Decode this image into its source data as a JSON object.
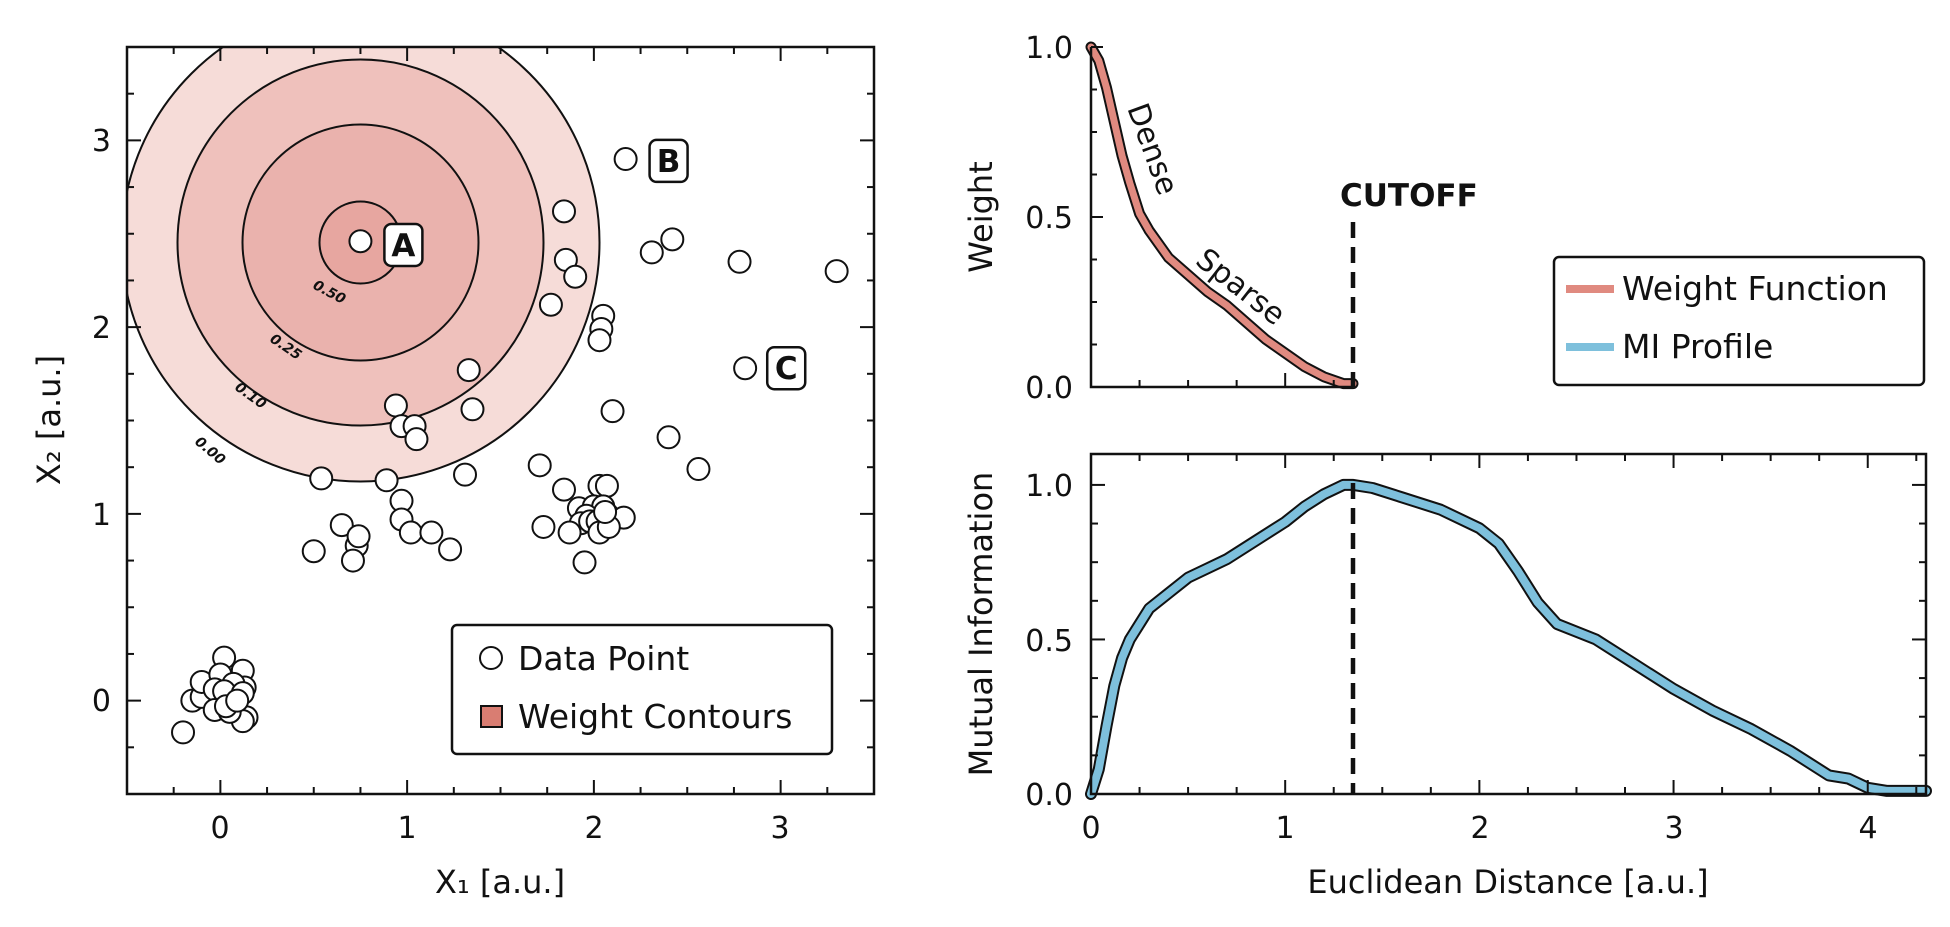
{
  "colors": {
    "weight": "#e08a80",
    "mi": "#7ec0dc",
    "contour_fills": [
      "#f6dcd8",
      "#efc1bc",
      "#eab2ad",
      "#e7a6a0"
    ],
    "legend_patch": "#d97d72"
  },
  "left_panel": {
    "xlabel": "X₁ [a.u.]",
    "ylabel": "X₂ [a.u.]",
    "xticks": [
      "0",
      "1",
      "2",
      "3"
    ],
    "yticks": [
      "0",
      "1",
      "2",
      "3"
    ],
    "legend": [
      "Data Point",
      "Weight Contours"
    ],
    "contour_labels": [
      "0.50",
      "0.25",
      "0.10",
      "0.00"
    ],
    "point_labels": [
      "A",
      "B",
      "C"
    ]
  },
  "top_right_panel": {
    "ylabel": "Weight",
    "yticks": [
      "0.0",
      "0.5",
      "1.0"
    ],
    "curve_labels": [
      "Dense",
      "Sparse"
    ],
    "cutoff_label": "CUTOFF"
  },
  "legend_right": [
    "Weight Function",
    "MI Profile"
  ],
  "bottom_right_panel": {
    "xlabel": "Euclidean Distance [a.u.]",
    "ylabel": "Mutual Information",
    "xticks": [
      "0",
      "1",
      "2",
      "3",
      "4"
    ],
    "yticks": [
      "0.0",
      "0.5",
      "1.0"
    ]
  },
  "chart_data": [
    {
      "type": "scatter",
      "xlim": [
        -0.5,
        3.5
      ],
      "ylim": [
        -0.5,
        3.5
      ],
      "series": [
        {
          "name": "Data Point",
          "points": [
            [
              0.75,
              2.46
            ],
            [
              2.17,
              2.9
            ],
            [
              2.81,
              1.78
            ],
            [
              3.3,
              2.3
            ],
            [
              2.78,
              2.35
            ],
            [
              2.42,
              2.47
            ],
            [
              2.31,
              2.4
            ],
            [
              1.84,
              2.62
            ],
            [
              1.85,
              2.36
            ],
            [
              1.9,
              2.27
            ],
            [
              1.77,
              2.12
            ],
            [
              2.05,
              2.06
            ],
            [
              2.04,
              1.99
            ],
            [
              2.03,
              1.93
            ],
            [
              1.33,
              1.77
            ],
            [
              1.35,
              1.56
            ],
            [
              2.1,
              1.55
            ],
            [
              2.4,
              1.41
            ],
            [
              2.56,
              1.24
            ],
            [
              0.94,
              1.58
            ],
            [
              0.97,
              1.47
            ],
            [
              1.04,
              1.47
            ],
            [
              1.05,
              1.4
            ],
            [
              0.54,
              1.19
            ],
            [
              0.89,
              1.18
            ],
            [
              1.31,
              1.21
            ],
            [
              0.97,
              1.07
            ],
            [
              0.97,
              0.97
            ],
            [
              1.02,
              0.9
            ],
            [
              1.13,
              0.9
            ],
            [
              1.23,
              0.81
            ],
            [
              0.5,
              0.8
            ],
            [
              0.65,
              0.94
            ],
            [
              0.73,
              0.83
            ],
            [
              0.74,
              0.88
            ],
            [
              0.71,
              0.75
            ],
            [
              1.71,
              1.26
            ],
            [
              1.84,
              1.13
            ],
            [
              2.03,
              1.15
            ],
            [
              2.07,
              1.15
            ],
            [
              1.92,
              1.03
            ],
            [
              2.0,
              1.04
            ],
            [
              2.05,
              1.04
            ],
            [
              1.96,
              0.99
            ],
            [
              1.93,
              0.95
            ],
            [
              1.98,
              0.96
            ],
            [
              2.02,
              0.96
            ],
            [
              2.07,
              1.0
            ],
            [
              2.09,
              0.98
            ],
            [
              2.16,
              0.98
            ],
            [
              1.87,
              0.9
            ],
            [
              2.03,
              0.9
            ],
            [
              2.08,
              0.93
            ],
            [
              1.73,
              0.93
            ],
            [
              1.95,
              0.74
            ],
            [
              2.06,
              1.01
            ],
            [
              -0.2,
              -0.17
            ],
            [
              -0.15,
              0.0
            ],
            [
              -0.1,
              0.02
            ],
            [
              -0.1,
              0.1
            ],
            [
              0.02,
              0.23
            ],
            [
              0.12,
              0.16
            ],
            [
              0.0,
              0.14
            ],
            [
              0.13,
              0.07
            ],
            [
              0.07,
              0.09
            ],
            [
              -0.03,
              0.06
            ],
            [
              0.02,
              0.05
            ],
            [
              0.12,
              0.04
            ],
            [
              0.14,
              -0.09
            ],
            [
              0.12,
              -0.11
            ],
            [
              -0.03,
              -0.05
            ],
            [
              0.05,
              -0.06
            ],
            [
              0.03,
              -0.03
            ],
            [
              0.09,
              0.0
            ]
          ]
        }
      ],
      "contours": [
        {
          "label": "0.00",
          "radius": 1.28
        },
        {
          "label": "0.10",
          "radius": 0.98
        },
        {
          "label": "0.25",
          "radius": 0.63
        },
        {
          "label": "0.50",
          "radius": 0.22
        }
      ],
      "contour_center": [
        0.75,
        2.46
      ],
      "annotations": [
        {
          "text": "A",
          "x": 0.98,
          "y": 2.44
        },
        {
          "text": "B",
          "x": 2.4,
          "y": 2.89
        },
        {
          "text": "C",
          "x": 3.03,
          "y": 1.78
        }
      ]
    },
    {
      "type": "line",
      "series": [
        {
          "name": "Weight Function",
          "x": [
            0.0,
            0.04,
            0.08,
            0.12,
            0.16,
            0.2,
            0.25,
            0.3,
            0.35,
            0.4,
            0.5,
            0.6,
            0.7,
            0.8,
            0.9,
            1.0,
            1.1,
            1.2,
            1.3,
            1.35
          ],
          "y": [
            1.0,
            0.96,
            0.88,
            0.78,
            0.68,
            0.6,
            0.51,
            0.46,
            0.42,
            0.38,
            0.33,
            0.28,
            0.24,
            0.19,
            0.14,
            0.1,
            0.06,
            0.03,
            0.01,
            0.01
          ]
        }
      ],
      "xlim": [
        0,
        1.35
      ],
      "ylim": [
        0,
        1.0
      ],
      "cutoff": 1.35
    },
    {
      "type": "line",
      "series": [
        {
          "name": "MI Profile",
          "x": [
            0.0,
            0.04,
            0.08,
            0.12,
            0.16,
            0.2,
            0.25,
            0.3,
            0.4,
            0.5,
            0.6,
            0.7,
            0.8,
            0.9,
            1.0,
            1.1,
            1.2,
            1.3,
            1.35,
            1.45,
            1.6,
            1.8,
            2.0,
            2.1,
            2.2,
            2.3,
            2.4,
            2.6,
            2.8,
            3.0,
            3.2,
            3.4,
            3.6,
            3.7,
            3.8,
            3.9,
            4.0,
            4.1,
            4.3
          ],
          "y": [
            0.0,
            0.08,
            0.22,
            0.35,
            0.44,
            0.5,
            0.55,
            0.6,
            0.65,
            0.7,
            0.73,
            0.76,
            0.8,
            0.84,
            0.88,
            0.93,
            0.97,
            1.0,
            1.0,
            0.99,
            0.96,
            0.92,
            0.86,
            0.81,
            0.72,
            0.62,
            0.55,
            0.5,
            0.42,
            0.34,
            0.27,
            0.21,
            0.14,
            0.1,
            0.06,
            0.05,
            0.02,
            0.01,
            0.01
          ]
        }
      ],
      "xlim": [
        0,
        4.3
      ],
      "ylim": [
        0,
        1.1
      ],
      "peak_x": 1.35
    }
  ]
}
